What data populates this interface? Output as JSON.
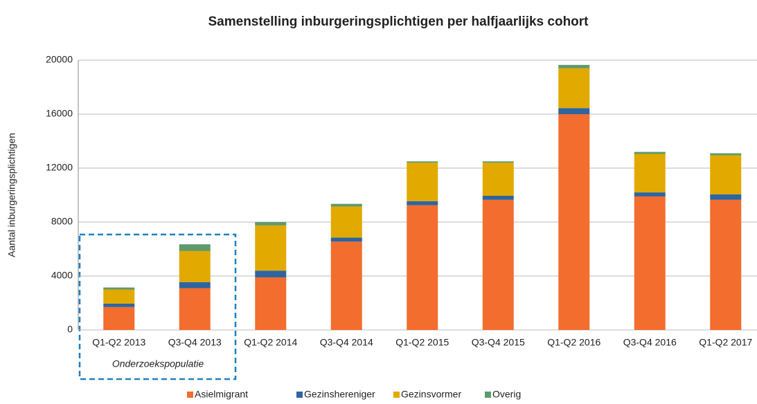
{
  "chart_data": {
    "type": "stacked_bar",
    "title": "Samenstelling inburgeringsplichtigen per halfjaarlijks cohort",
    "y_label": "Aantal inburgeringsplichtigen",
    "annotation": "Onderzoekspopulatie",
    "categories": [
      "Q1-Q2 2013",
      "Q3-Q4 2013",
      "Q1-Q2 2014",
      "Q3-Q4 2014",
      "Q1-Q2 2015",
      "Q3-Q4 2015",
      "Q1-Q2 2016",
      "Q3-Q4 2016",
      "Q1-Q2 2017"
    ],
    "series": [
      {
        "name": "Asielmigrant",
        "color": "#f26d2e",
        "values": [
          1700,
          3100,
          3900,
          6550,
          9250,
          9650,
          16000,
          9900,
          9650
        ]
      },
      {
        "name": "Gezinshereniger",
        "color": "#2e65a0",
        "values": [
          250,
          450,
          500,
          300,
          300,
          300,
          450,
          300,
          400
        ]
      },
      {
        "name": "Gezinsvormer",
        "color": "#e2a900",
        "values": [
          1050,
          2300,
          3350,
          2300,
          2850,
          2450,
          2950,
          2850,
          2900
        ]
      },
      {
        "name": "Overig",
        "color": "#5e9a6a",
        "values": [
          150,
          500,
          250,
          200,
          100,
          100,
          250,
          150,
          150
        ]
      }
    ],
    "ylim": [
      0,
      20000
    ],
    "yticks": [
      0,
      4000,
      8000,
      12000,
      16000,
      20000
    ],
    "grid": true,
    "legend": "bottom"
  }
}
